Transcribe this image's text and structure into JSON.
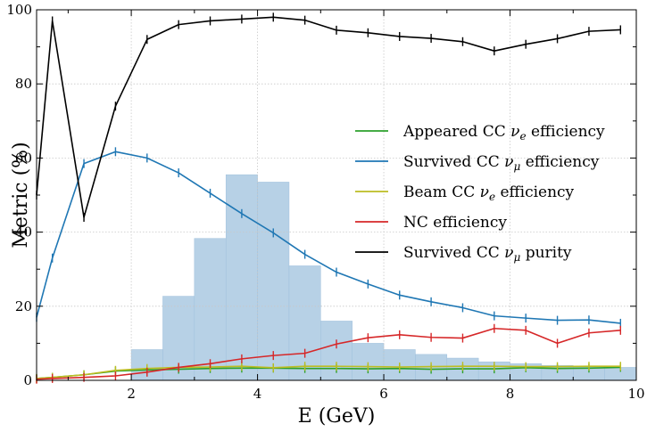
{
  "chart_data": {
    "type": "line",
    "xlabel": "E (GeV)",
    "ylabel": "Metric (%)",
    "xlim": [
      0.5,
      10
    ],
    "ylim": [
      0,
      100
    ],
    "x_ticks": [
      2,
      4,
      6,
      8,
      10
    ],
    "y_ticks": [
      0,
      20,
      40,
      60,
      80,
      100
    ],
    "grid": "dotted",
    "legend_position": "right",
    "histogram": {
      "color": "#b7d1e6",
      "edges": [
        0.5,
        1.0,
        1.5,
        2.0,
        2.5,
        3.0,
        3.5,
        4.0,
        4.5,
        5.0,
        5.5,
        6.0,
        6.5,
        7.0,
        7.5,
        8.0,
        8.5,
        9.0,
        9.5,
        10.0
      ],
      "values": [
        0,
        0,
        0,
        8.3,
        22.7,
        38.3,
        55.5,
        53.5,
        30.9,
        16.0,
        10.0,
        8.3,
        7.0,
        6.0,
        5.0,
        4.5,
        4.0,
        3.7,
        3.5
      ]
    },
    "x": [
      0.5,
      0.75,
      1.25,
      1.75,
      2.25,
      2.75,
      3.25,
      3.75,
      4.25,
      4.75,
      5.25,
      5.75,
      6.25,
      6.75,
      7.25,
      7.75,
      8.25,
      8.75,
      9.25,
      9.75
    ],
    "series": [
      {
        "name": "Appeared CC ν_e efficiency",
        "label_main": "Appeared CC ",
        "label_symbol": "ν",
        "label_sub": "e",
        "label_tail": " efficiency",
        "color": "#2ca02c",
        "x": [
          0.5,
          0.75,
          1.25,
          1.75,
          2.25,
          2.75,
          3.25,
          3.75,
          4.25,
          4.75,
          5.25,
          5.75,
          6.25,
          6.75,
          7.25,
          7.75,
          8.25,
          8.75,
          9.25,
          9.75
        ],
        "values": [
          0.5,
          0.8,
          1.5,
          2.5,
          2.8,
          3.0,
          3.2,
          3.3,
          3.3,
          3.2,
          3.2,
          3.1,
          3.2,
          3.0,
          3.1,
          3.1,
          3.4,
          3.2,
          3.3,
          3.5
        ]
      },
      {
        "name": "Survived CC ν_μ efficiency",
        "label_main": "Survived CC ",
        "label_symbol": "ν",
        "label_sub": "μ",
        "label_tail": " efficiency",
        "color": "#1f77b4",
        "x": [
          0.5,
          0.75,
          1.25,
          1.75,
          2.25,
          2.75,
          3.25,
          3.75,
          4.25,
          4.75,
          5.25,
          5.75,
          6.25,
          6.75,
          7.25,
          7.75,
          8.25,
          8.75,
          9.25,
          9.75
        ],
        "values": [
          17,
          33,
          58.5,
          61.7,
          60,
          56,
          50.5,
          45,
          39.8,
          34.0,
          29.2,
          26.0,
          23.0,
          21.2,
          19.6,
          17.4,
          16.8,
          16.2,
          16.3,
          15.4
        ]
      },
      {
        "name": "Beam CC ν_e efficiency",
        "label_main": "Beam CC ",
        "label_symbol": "ν",
        "label_sub": "e",
        "label_tail": " efficiency",
        "color": "#bcbd22",
        "x": [
          0.5,
          0.75,
          1.25,
          1.75,
          2.25,
          2.75,
          3.25,
          3.75,
          4.25,
          4.75,
          5.25,
          5.75,
          6.25,
          6.75,
          7.25,
          7.75,
          8.25,
          8.75,
          9.25,
          9.75
        ],
        "values": [
          0.5,
          0.8,
          1.5,
          2.7,
          3.2,
          3.5,
          3.6,
          3.8,
          3.4,
          3.8,
          3.8,
          3.7,
          3.6,
          3.7,
          3.8,
          3.8,
          3.7,
          3.7,
          3.8,
          3.8
        ]
      },
      {
        "name": "NC efficiency",
        "label_main": "NC efficiency",
        "label_symbol": "",
        "label_sub": "",
        "label_tail": "",
        "color": "#d62728",
        "x": [
          0.5,
          0.75,
          1.25,
          1.75,
          2.25,
          2.75,
          3.25,
          3.75,
          4.25,
          4.75,
          5.25,
          5.75,
          6.25,
          6.75,
          7.25,
          7.75,
          8.25,
          8.75,
          9.25,
          9.75
        ],
        "values": [
          0.3,
          0.5,
          0.8,
          1.2,
          2.2,
          3.5,
          4.5,
          5.8,
          6.7,
          7.3,
          9.8,
          11.5,
          12.3,
          11.6,
          11.4,
          14.0,
          13.5,
          10.0,
          12.8,
          13.5
        ]
      },
      {
        "name": "Survived CC ν_μ purity",
        "label_main": "Survived CC ",
        "label_symbol": "ν",
        "label_sub": "μ",
        "label_tail": " purity",
        "color": "#000000",
        "x": [
          0.5,
          0.75,
          1.25,
          1.75,
          2.25,
          2.75,
          3.25,
          3.75,
          4.25,
          4.75,
          5.25,
          5.75,
          6.25,
          6.75,
          7.25,
          7.75,
          8.25,
          8.75,
          9.25,
          9.75
        ],
        "values": [
          50,
          97,
          44,
          74,
          92,
          96,
          97,
          97.5,
          98,
          97.2,
          94.5,
          93.8,
          92.8,
          92.3,
          91.4,
          88.9,
          90.7,
          92.2,
          94.2,
          94.6
        ]
      }
    ]
  }
}
